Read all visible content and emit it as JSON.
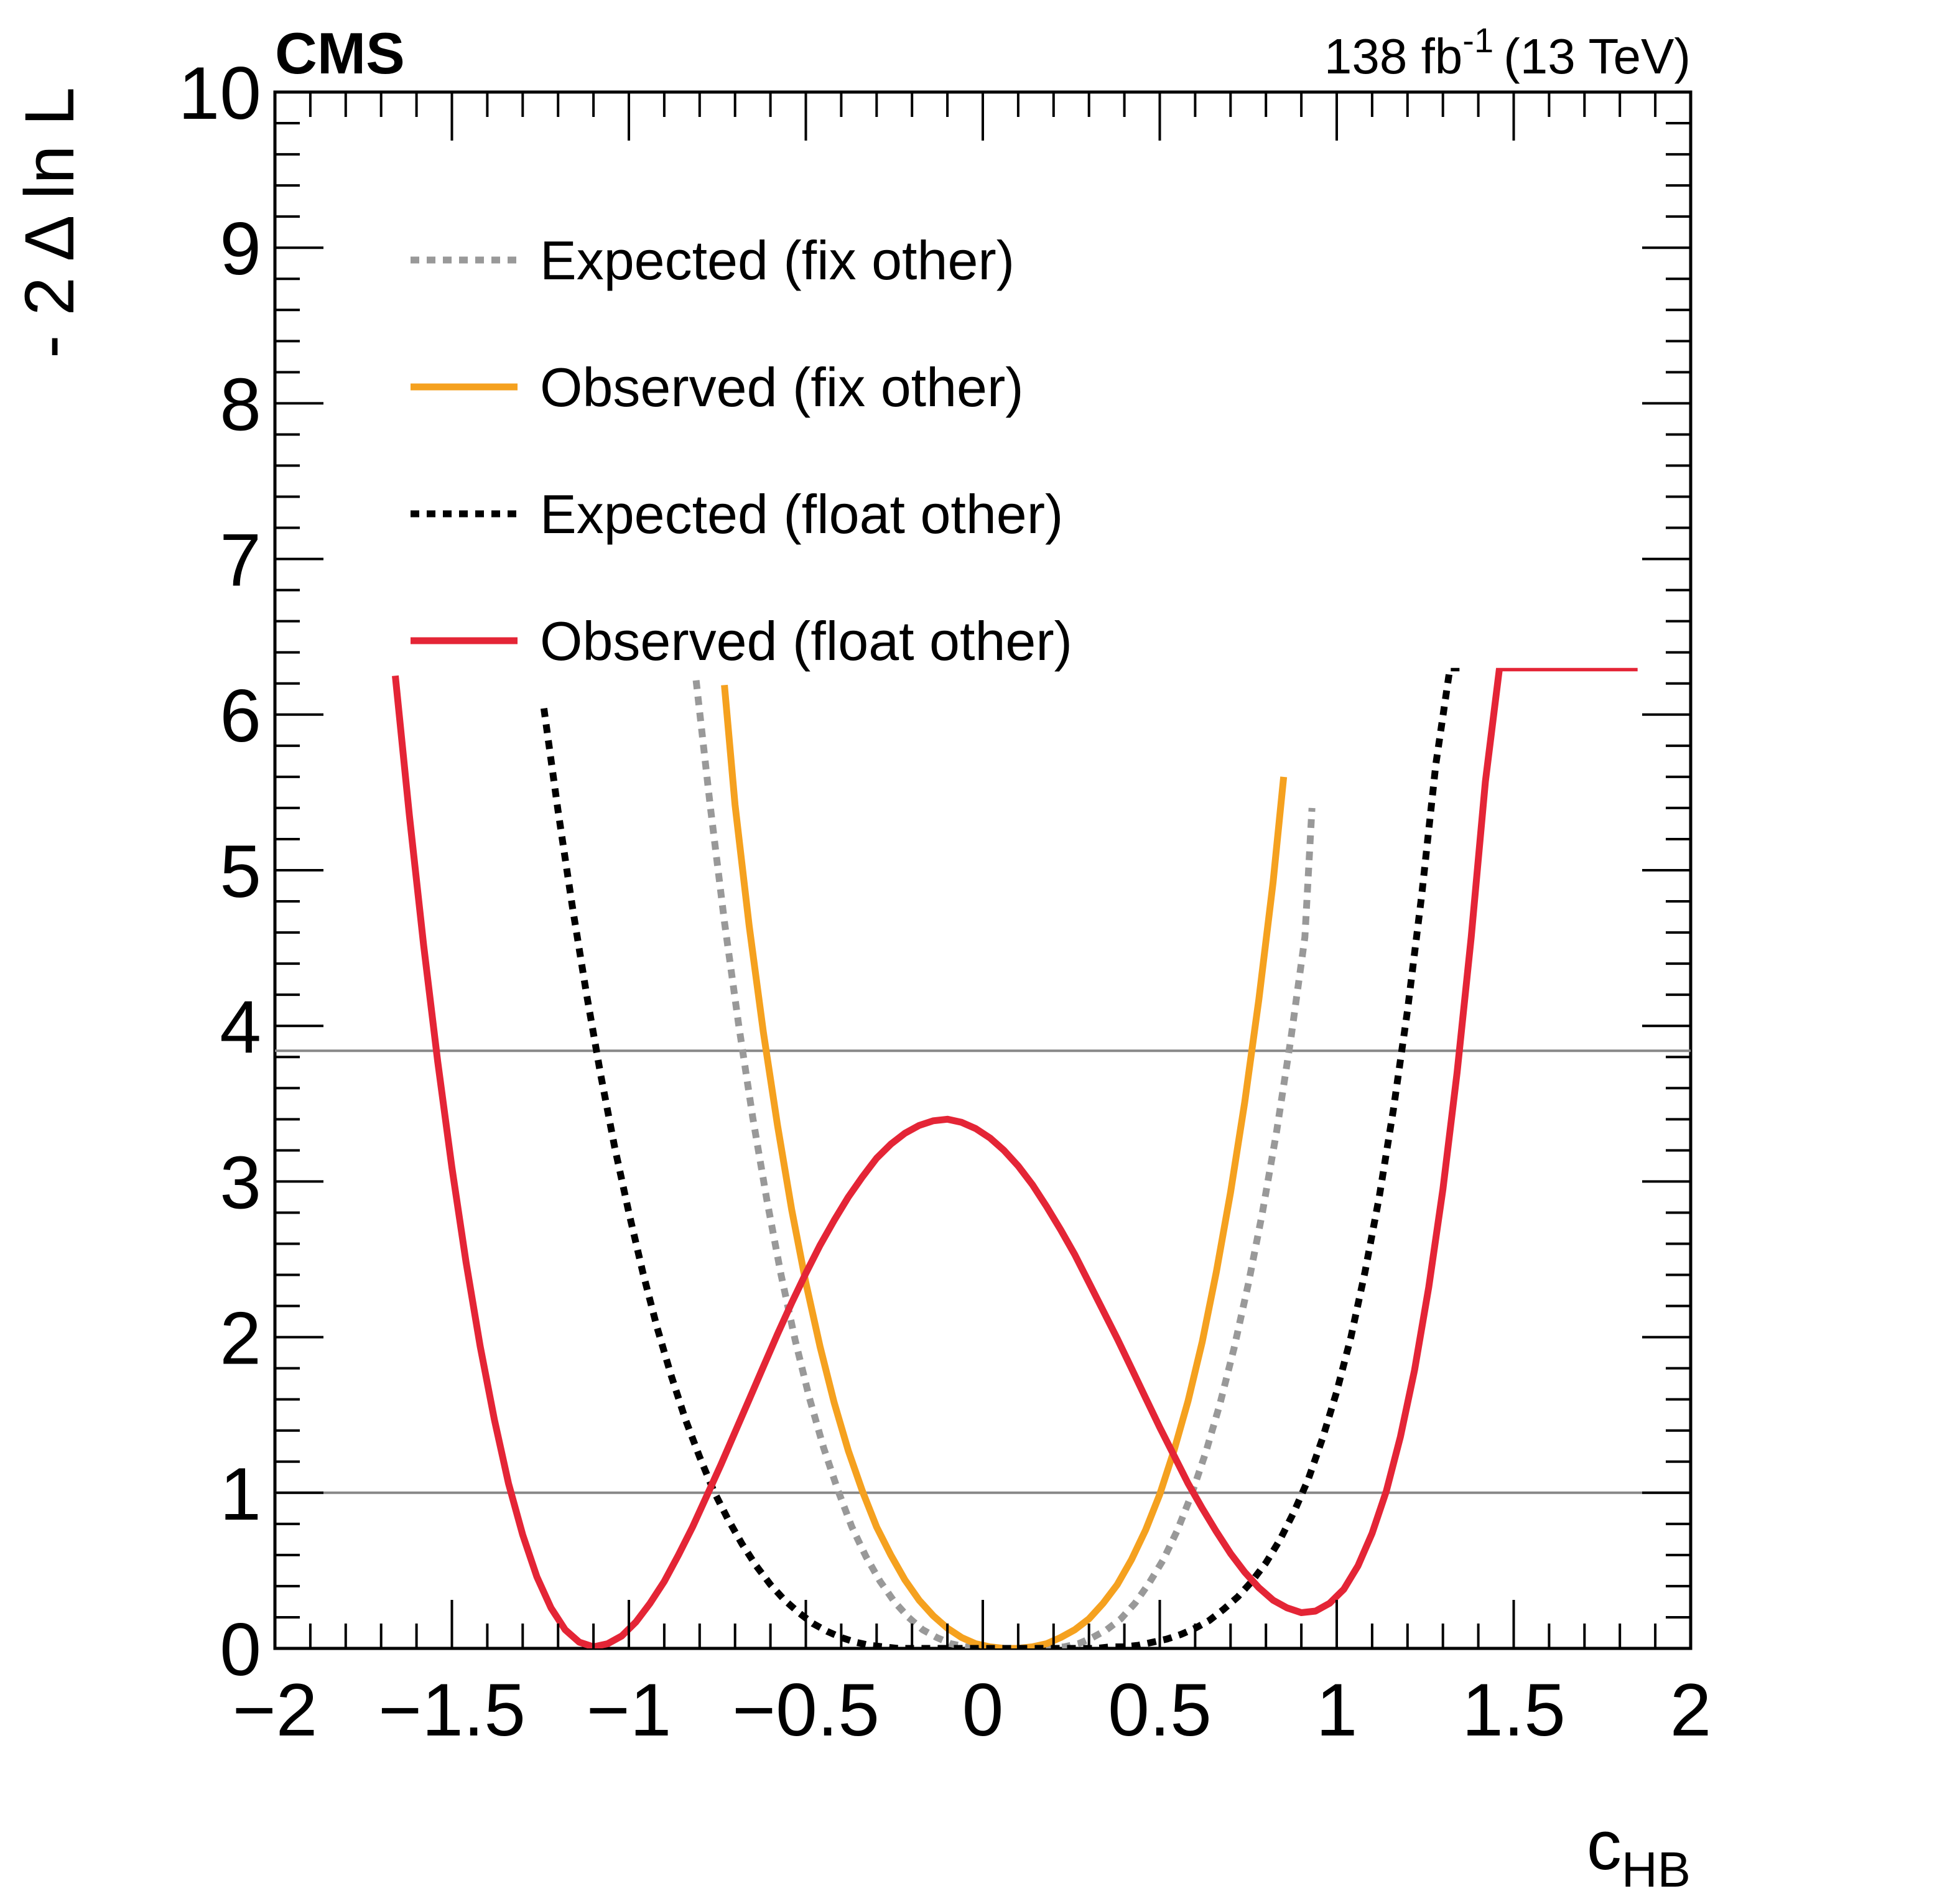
{
  "header": {
    "experiment": "CMS",
    "lumi_value": "138 fb",
    "lumi_exponent": "-1",
    "energy": "(13 TeV)"
  },
  "chart_data": {
    "type": "line",
    "title": "",
    "xlabel": "c",
    "xlabel_subscript": "HB",
    "ylabel": "- 2 Δ ln L",
    "xlim": [
      -2,
      2
    ],
    "ylim": [
      0,
      10
    ],
    "x_tick_labels": [
      "−2",
      "−1.5",
      "−1",
      "−0.5",
      "0",
      "0.5",
      "1",
      "1.5",
      "2"
    ],
    "y_tick_labels": [
      "0",
      "1",
      "2",
      "3",
      "4",
      "5",
      "6",
      "7",
      "8",
      "9",
      "10"
    ],
    "reference_lines": [
      1.0,
      3.84
    ],
    "legend_position": "top-left",
    "series": [
      {
        "name": "Expected (fix other)",
        "color": "#999999",
        "style": "dashed",
        "x": [
          -0.81,
          -0.77,
          -0.73,
          -0.69,
          -0.65,
          -0.61,
          -0.57,
          -0.53,
          -0.49,
          -0.45,
          -0.41,
          -0.37,
          -0.33,
          -0.29,
          -0.25,
          -0.21,
          -0.17,
          -0.13,
          -0.09,
          -0.05,
          -0.01,
          0.03,
          0.07,
          0.11,
          0.15,
          0.19,
          0.23,
          0.27,
          0.31,
          0.35,
          0.39,
          0.43,
          0.47,
          0.51,
          0.55,
          0.59,
          0.63,
          0.67,
          0.71,
          0.75,
          0.79,
          0.83,
          0.87,
          0.91,
          0.93
        ],
        "values": [
          6.22,
          5.41,
          4.67,
          4.01,
          3.41,
          2.88,
          2.4,
          1.98,
          1.61,
          1.29,
          1.02,
          0.78,
          0.59,
          0.43,
          0.3,
          0.2,
          0.12,
          0.07,
          0.03,
          0.01,
          0.0,
          0.0,
          0.0,
          0.0,
          0.0,
          0.0,
          0.01,
          0.03,
          0.07,
          0.12,
          0.19,
          0.29,
          0.42,
          0.57,
          0.76,
          0.99,
          1.26,
          1.57,
          1.93,
          2.34,
          2.8,
          3.32,
          3.91,
          4.57,
          5.4
        ]
      },
      {
        "name": "Observed (fix other)",
        "color": "#f5a11f",
        "style": "solid",
        "x": [
          -0.73,
          -0.7,
          -0.66,
          -0.62,
          -0.58,
          -0.54,
          -0.5,
          -0.46,
          -0.42,
          -0.38,
          -0.34,
          -0.3,
          -0.26,
          -0.22,
          -0.18,
          -0.14,
          -0.1,
          -0.06,
          -0.02,
          0.02,
          0.06,
          0.1,
          0.14,
          0.18,
          0.22,
          0.26,
          0.3,
          0.34,
          0.38,
          0.42,
          0.46,
          0.5,
          0.54,
          0.58,
          0.62,
          0.66,
          0.7,
          0.74,
          0.78,
          0.82,
          0.85
        ],
        "values": [
          6.19,
          5.42,
          4.64,
          3.96,
          3.36,
          2.82,
          2.35,
          1.94,
          1.58,
          1.27,
          1.01,
          0.78,
          0.6,
          0.44,
          0.31,
          0.21,
          0.13,
          0.07,
          0.03,
          0.01,
          0.0,
          0.0,
          0.01,
          0.03,
          0.07,
          0.12,
          0.19,
          0.29,
          0.41,
          0.57,
          0.76,
          0.99,
          1.27,
          1.59,
          1.97,
          2.42,
          2.93,
          3.51,
          4.17,
          4.92,
          5.6
        ]
      },
      {
        "name": "Expected (float other)",
        "color": "#000000",
        "style": "dashed",
        "x": [
          -1.24,
          -1.2,
          -1.16,
          -1.12,
          -1.08,
          -1.04,
          -1.0,
          -0.96,
          -0.92,
          -0.88,
          -0.84,
          -0.8,
          -0.76,
          -0.72,
          -0.68,
          -0.64,
          -0.6,
          -0.56,
          -0.52,
          -0.48,
          -0.44,
          -0.4,
          -0.36,
          -0.32,
          -0.28,
          -0.24,
          -0.2,
          -0.16,
          -0.12,
          -0.08,
          -0.04,
          0.0,
          0.04,
          0.08,
          0.12,
          0.16,
          0.2,
          0.24,
          0.28,
          0.32,
          0.36,
          0.4,
          0.44,
          0.48,
          0.52,
          0.56,
          0.6,
          0.64,
          0.68,
          0.72,
          0.76,
          0.8,
          0.84,
          0.88,
          0.92,
          0.96,
          1.0,
          1.04,
          1.08,
          1.12,
          1.16,
          1.2,
          1.24,
          1.28,
          1.32,
          1.35
        ],
        "values": [
          6.04,
          5.38,
          4.77,
          4.21,
          3.69,
          3.22,
          2.8,
          2.41,
          2.06,
          1.75,
          1.47,
          1.23,
          1.01,
          0.83,
          0.67,
          0.53,
          0.41,
          0.31,
          0.23,
          0.16,
          0.11,
          0.07,
          0.04,
          0.02,
          0.01,
          0.0,
          0.0,
          0.0,
          0.0,
          0.0,
          0.0,
          0.0,
          0.0,
          0.0,
          0.0,
          0.0,
          0.0,
          0.0,
          0.0,
          0.0,
          0.01,
          0.01,
          0.02,
          0.04,
          0.06,
          0.09,
          0.13,
          0.18,
          0.25,
          0.33,
          0.43,
          0.55,
          0.7,
          0.88,
          1.09,
          1.35,
          1.65,
          2.0,
          2.42,
          2.9,
          3.46,
          4.1,
          4.84,
          5.68,
          6.3,
          6.3
        ]
      },
      {
        "name": "Observed (float other)",
        "color": "#e42536",
        "style": "solid",
        "x": [
          -1.66,
          -1.62,
          -1.58,
          -1.54,
          -1.5,
          -1.46,
          -1.42,
          -1.38,
          -1.34,
          -1.3,
          -1.26,
          -1.22,
          -1.18,
          -1.14,
          -1.1,
          -1.06,
          -1.02,
          -0.98,
          -0.94,
          -0.9,
          -0.86,
          -0.82,
          -0.78,
          -0.74,
          -0.7,
          -0.66,
          -0.62,
          -0.58,
          -0.54,
          -0.5,
          -0.46,
          -0.42,
          -0.38,
          -0.34,
          -0.3,
          -0.26,
          -0.22,
          -0.18,
          -0.14,
          -0.1,
          -0.06,
          -0.02,
          0.02,
          0.06,
          0.1,
          0.14,
          0.18,
          0.22,
          0.26,
          0.3,
          0.34,
          0.38,
          0.42,
          0.46,
          0.5,
          0.54,
          0.58,
          0.62,
          0.66,
          0.7,
          0.74,
          0.78,
          0.82,
          0.86,
          0.9,
          0.94,
          0.98,
          1.02,
          1.06,
          1.1,
          1.14,
          1.18,
          1.22,
          1.26,
          1.3,
          1.34,
          1.38,
          1.42,
          1.46,
          1.5,
          1.54,
          1.58,
          1.62,
          1.66,
          1.7,
          1.74,
          1.78,
          1.82,
          1.85
        ],
        "values": [
          6.25,
          5.35,
          4.52,
          3.77,
          3.09,
          2.48,
          1.94,
          1.47,
          1.06,
          0.73,
          0.46,
          0.26,
          0.12,
          0.04,
          0.01,
          0.03,
          0.08,
          0.17,
          0.29,
          0.43,
          0.6,
          0.78,
          0.98,
          1.18,
          1.39,
          1.6,
          1.81,
          2.02,
          2.22,
          2.41,
          2.59,
          2.75,
          2.9,
          3.03,
          3.15,
          3.24,
          3.31,
          3.36,
          3.39,
          3.4,
          3.38,
          3.34,
          3.28,
          3.2,
          3.1,
          2.98,
          2.84,
          2.69,
          2.53,
          2.35,
          2.17,
          1.99,
          1.8,
          1.61,
          1.42,
          1.24,
          1.06,
          0.9,
          0.75,
          0.61,
          0.49,
          0.39,
          0.31,
          0.26,
          0.23,
          0.24,
          0.29,
          0.38,
          0.53,
          0.74,
          1.01,
          1.36,
          1.79,
          2.32,
          2.95,
          3.7,
          4.57,
          5.57,
          6.3,
          6.3,
          6.3,
          6.3,
          6.3,
          6.3,
          6.3,
          6.3,
          6.3,
          6.3,
          6.3
        ]
      }
    ]
  }
}
